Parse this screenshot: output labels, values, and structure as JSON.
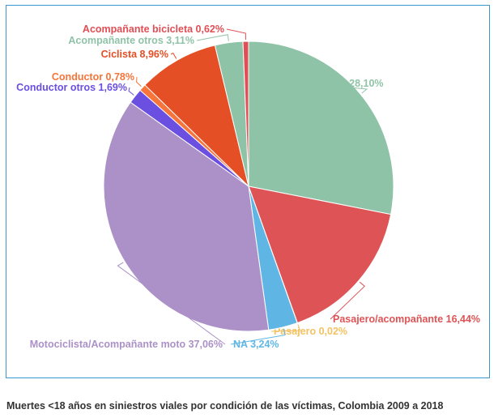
{
  "chart_data": {
    "type": "pie",
    "title": "",
    "start": "top",
    "direction": "clockwise",
    "unit": "%",
    "slices": [
      {
        "label": "Peatón 28,10%",
        "value": 28.1,
        "color": "#8fc3a7"
      },
      {
        "label": "Pasajero/acompañante 16,44%",
        "value": 16.44,
        "color": "#de5456"
      },
      {
        "label": "Pasajero 0,02%",
        "value": 0.02,
        "color": "#f3c262"
      },
      {
        "label": "NA 3,24%",
        "value": 3.24,
        "color": "#5fb6e4"
      },
      {
        "label": "Motociclista/Acompañante moto 37,06%",
        "value": 37.06,
        "color": "#ab91c7"
      },
      {
        "label": "Conductor otros 1,69%",
        "value": 1.69,
        "color": "#6a4fe0"
      },
      {
        "label": "Conductor 0,78%",
        "value": 0.78,
        "color": "#f7743a"
      },
      {
        "label": "Ciclista 8,96%",
        "value": 8.96,
        "color": "#e44f25"
      },
      {
        "label": "Acompañante otros 3,11%",
        "value": 3.11,
        "color": "#8fc3a7"
      },
      {
        "label": "Acompañante bicicleta 0,62%",
        "value": 0.62,
        "color": "#e04f55"
      }
    ]
  },
  "caption": "Muertes <18 años en siniestros viales por condición de las víctimas, Colombia 2009 a 2018"
}
